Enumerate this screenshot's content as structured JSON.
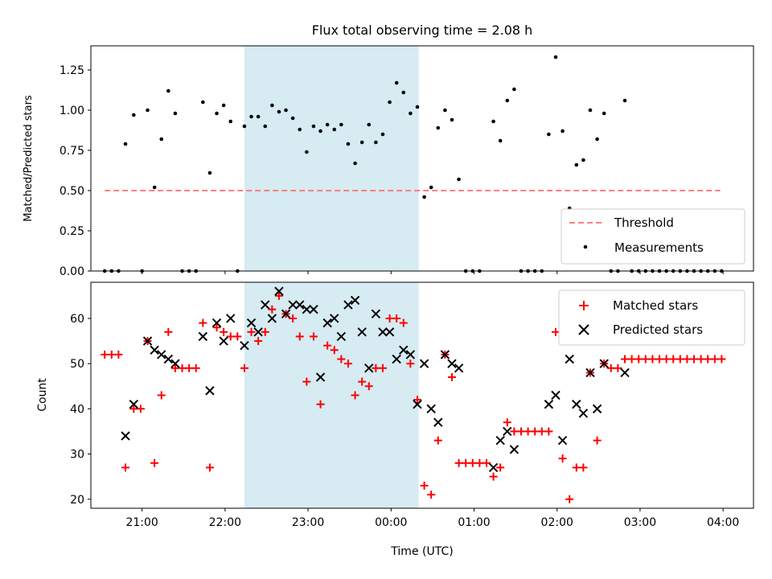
{
  "chart_data": [
    {
      "type": "scatter",
      "title": "Flux total observing time = 2.08 h",
      "xlabel": "",
      "ylabel": "Matched/Predicted stars",
      "x_unit": "time (UTC, hours after 00:00 of first night; >24 = next day)",
      "xlim": [
        "20:23",
        "04:22"
      ],
      "ylim": [
        0,
        1.4
      ],
      "yticks": [
        "0.00",
        "0.25",
        "0.50",
        "0.75",
        "1.00",
        "1.25"
      ],
      "shaded_interval": [
        "22:14",
        "00:20"
      ],
      "shade_color": "#add8e6",
      "threshold": {
        "name": "Threshold",
        "y": 0.5,
        "x_range": [
          "20:33",
          "03:58"
        ],
        "color": "#ff7f7f"
      },
      "series": [
        {
          "name": "Measurements",
          "color": "#000000",
          "marker": "dot",
          "points": [
            [
              "20:33",
              0
            ],
            [
              "20:38",
              0
            ],
            [
              "20:43",
              0
            ],
            [
              "20:48",
              0.79
            ],
            [
              "20:54",
              0.97
            ],
            [
              "21:00",
              0
            ],
            [
              "21:04",
              1.0
            ],
            [
              "21:09",
              0.52
            ],
            [
              "21:14",
              0.82
            ],
            [
              "21:19",
              1.12
            ],
            [
              "21:24",
              0.98
            ],
            [
              "21:29",
              0
            ],
            [
              "21:34",
              0
            ],
            [
              "21:39",
              0
            ],
            [
              "21:44",
              1.05
            ],
            [
              "21:49",
              0.61
            ],
            [
              "21:54",
              0.98
            ],
            [
              "21:59",
              1.03
            ],
            [
              "22:04",
              0.93
            ],
            [
              "22:09",
              0
            ],
            [
              "22:14",
              0.9
            ],
            [
              "22:19",
              0.96
            ],
            [
              "22:24",
              0.96
            ],
            [
              "22:29",
              0.9
            ],
            [
              "22:34",
              1.03
            ],
            [
              "22:39",
              0.99
            ],
            [
              "22:44",
              1.0
            ],
            [
              "22:49",
              0.95
            ],
            [
              "22:54",
              0.88
            ],
            [
              "22:59",
              0.74
            ],
            [
              "23:04",
              0.9
            ],
            [
              "23:09",
              0.87
            ],
            [
              "23:14",
              0.91
            ],
            [
              "23:19",
              0.88
            ],
            [
              "23:24",
              0.91
            ],
            [
              "23:29",
              0.79
            ],
            [
              "23:34",
              0.67
            ],
            [
              "23:39",
              0.8
            ],
            [
              "23:44",
              0.91
            ],
            [
              "23:49",
              0.8
            ],
            [
              "23:54",
              0.85
            ],
            [
              "23:59",
              1.05
            ],
            [
              "24:04",
              1.17
            ],
            [
              "24:09",
              1.11
            ],
            [
              "24:14",
              0.98
            ],
            [
              "24:19",
              1.02
            ],
            [
              "24:24",
              0.46
            ],
            [
              "24:29",
              0.52
            ],
            [
              "24:34",
              0.89
            ],
            [
              "24:39",
              1.0
            ],
            [
              "24:44",
              0.94
            ],
            [
              "24:49",
              0.57
            ],
            [
              "24:54",
              0
            ],
            [
              "24:59",
              0
            ],
            [
              "25:04",
              0
            ],
            [
              "25:14",
              0.93
            ],
            [
              "25:19",
              0.81
            ],
            [
              "25:24",
              1.06
            ],
            [
              "25:29",
              1.13
            ],
            [
              "25:34",
              0
            ],
            [
              "25:39",
              0
            ],
            [
              "25:44",
              0
            ],
            [
              "25:49",
              0
            ],
            [
              "25:54",
              0.85
            ],
            [
              "25:59",
              1.33
            ],
            [
              "26:04",
              0.87
            ],
            [
              "26:09",
              0.39
            ],
            [
              "26:14",
              0.66
            ],
            [
              "26:19",
              0.69
            ],
            [
              "26:24",
              1.0
            ],
            [
              "26:29",
              0.82
            ],
            [
              "26:34",
              0.98
            ],
            [
              "26:39",
              0
            ],
            [
              "26:44",
              0
            ],
            [
              "26:49",
              1.06
            ],
            [
              "26:54",
              0
            ],
            [
              "26:59",
              0
            ],
            [
              "27:04",
              0
            ],
            [
              "27:09",
              0
            ],
            [
              "27:14",
              0
            ],
            [
              "27:19",
              0
            ],
            [
              "27:24",
              0
            ],
            [
              "27:29",
              0
            ],
            [
              "27:34",
              0
            ],
            [
              "27:39",
              0
            ],
            [
              "27:44",
              0
            ],
            [
              "27:49",
              0
            ],
            [
              "27:54",
              0
            ],
            [
              "27:59",
              0
            ]
          ]
        }
      ],
      "legend": {
        "position": "bottom-right",
        "entries": [
          "Threshold",
          "Measurements"
        ]
      }
    },
    {
      "type": "scatter",
      "title": "",
      "xlabel": "Time (UTC)",
      "ylabel": "Count",
      "xlim": [
        "20:23",
        "04:22"
      ],
      "ylim": [
        18,
        68
      ],
      "yticks": [
        "20",
        "30",
        "40",
        "50",
        "60"
      ],
      "xticks": [
        "21:00",
        "22:00",
        "23:00",
        "00:00",
        "01:00",
        "02:00",
        "03:00",
        "04:00"
      ],
      "shaded_interval": [
        "22:14",
        "00:20"
      ],
      "shade_color": "#add8e6",
      "series": [
        {
          "name": "Matched stars",
          "color": "#ff0000",
          "marker": "plus",
          "points": [
            [
              "20:33",
              52
            ],
            [
              "20:38",
              52
            ],
            [
              "20:43",
              52
            ],
            [
              "20:48",
              27
            ],
            [
              "20:54",
              40
            ],
            [
              "20:59",
              40
            ],
            [
              "21:04",
              55
            ],
            [
              "21:09",
              28
            ],
            [
              "21:14",
              43
            ],
            [
              "21:19",
              57
            ],
            [
              "21:24",
              49
            ],
            [
              "21:29",
              49
            ],
            [
              "21:34",
              49
            ],
            [
              "21:39",
              49
            ],
            [
              "21:44",
              59
            ],
            [
              "21:49",
              27
            ],
            [
              "21:54",
              58
            ],
            [
              "21:59",
              57
            ],
            [
              "22:04",
              56
            ],
            [
              "22:09",
              56
            ],
            [
              "22:14",
              49
            ],
            [
              "22:19",
              57
            ],
            [
              "22:24",
              55
            ],
            [
              "22:29",
              57
            ],
            [
              "22:34",
              62
            ],
            [
              "22:39",
              65
            ],
            [
              "22:44",
              61
            ],
            [
              "22:49",
              60
            ],
            [
              "22:54",
              56
            ],
            [
              "22:59",
              46
            ],
            [
              "23:04",
              56
            ],
            [
              "23:09",
              41
            ],
            [
              "23:14",
              54
            ],
            [
              "23:19",
              53
            ],
            [
              "23:24",
              51
            ],
            [
              "23:29",
              50
            ],
            [
              "23:34",
              43
            ],
            [
              "23:39",
              46
            ],
            [
              "23:44",
              45
            ],
            [
              "23:49",
              49
            ],
            [
              "23:54",
              49
            ],
            [
              "23:59",
              60
            ],
            [
              "24:04",
              60
            ],
            [
              "24:09",
              59
            ],
            [
              "24:14",
              50
            ],
            [
              "24:19",
              42
            ],
            [
              "24:24",
              23
            ],
            [
              "24:29",
              21
            ],
            [
              "24:34",
              33
            ],
            [
              "24:39",
              52
            ],
            [
              "24:44",
              47
            ],
            [
              "24:49",
              28
            ],
            [
              "24:54",
              28
            ],
            [
              "24:59",
              28
            ],
            [
              "25:04",
              28
            ],
            [
              "25:09",
              28
            ],
            [
              "25:14",
              25
            ],
            [
              "25:19",
              27
            ],
            [
              "25:24",
              37
            ],
            [
              "25:29",
              35
            ],
            [
              "25:34",
              35
            ],
            [
              "25:39",
              35
            ],
            [
              "25:44",
              35
            ],
            [
              "25:49",
              35
            ],
            [
              "25:54",
              35
            ],
            [
              "25:59",
              57
            ],
            [
              "26:04",
              29
            ],
            [
              "26:09",
              20
            ],
            [
              "26:14",
              27
            ],
            [
              "26:19",
              27
            ],
            [
              "26:24",
              48
            ],
            [
              "26:29",
              33
            ],
            [
              "26:34",
              50
            ],
            [
              "26:39",
              49
            ],
            [
              "26:44",
              49
            ],
            [
              "26:49",
              51
            ],
            [
              "26:54",
              51
            ],
            [
              "26:59",
              51
            ],
            [
              "27:04",
              51
            ],
            [
              "27:09",
              51
            ],
            [
              "27:14",
              51
            ],
            [
              "27:19",
              51
            ],
            [
              "27:24",
              51
            ],
            [
              "27:29",
              51
            ],
            [
              "27:34",
              51
            ],
            [
              "27:39",
              51
            ],
            [
              "27:44",
              51
            ],
            [
              "27:49",
              51
            ],
            [
              "27:54",
              51
            ],
            [
              "27:59",
              51
            ]
          ]
        },
        {
          "name": "Predicted stars",
          "color": "#000000",
          "marker": "x",
          "points": [
            [
              "20:48",
              34
            ],
            [
              "20:54",
              41
            ],
            [
              "21:04",
              55
            ],
            [
              "21:09",
              53
            ],
            [
              "21:14",
              52
            ],
            [
              "21:19",
              51
            ],
            [
              "21:24",
              50
            ],
            [
              "21:44",
              56
            ],
            [
              "21:49",
              44
            ],
            [
              "21:54",
              59
            ],
            [
              "21:59",
              55
            ],
            [
              "22:04",
              60
            ],
            [
              "22:14",
              54
            ],
            [
              "22:19",
              59
            ],
            [
              "22:24",
              57
            ],
            [
              "22:29",
              63
            ],
            [
              "22:34",
              60
            ],
            [
              "22:39",
              66
            ],
            [
              "22:44",
              61
            ],
            [
              "22:49",
              63
            ],
            [
              "22:54",
              63
            ],
            [
              "22:59",
              62
            ],
            [
              "23:04",
              62
            ],
            [
              "23:09",
              47
            ],
            [
              "23:14",
              59
            ],
            [
              "23:19",
              60
            ],
            [
              "23:24",
              56
            ],
            [
              "23:29",
              63
            ],
            [
              "23:34",
              64
            ],
            [
              "23:39",
              57
            ],
            [
              "23:44",
              49
            ],
            [
              "23:49",
              61
            ],
            [
              "23:54",
              57
            ],
            [
              "23:59",
              57
            ],
            [
              "24:04",
              51
            ],
            [
              "24:09",
              53
            ],
            [
              "24:14",
              52
            ],
            [
              "24:19",
              41
            ],
            [
              "24:24",
              50
            ],
            [
              "24:29",
              40
            ],
            [
              "24:34",
              37
            ],
            [
              "24:39",
              52
            ],
            [
              "24:44",
              50
            ],
            [
              "24:49",
              49
            ],
            [
              "25:14",
              27
            ],
            [
              "25:19",
              33
            ],
            [
              "25:24",
              35
            ],
            [
              "25:29",
              31
            ],
            [
              "25:54",
              41
            ],
            [
              "25:59",
              43
            ],
            [
              "26:04",
              33
            ],
            [
              "26:09",
              51
            ],
            [
              "26:14",
              41
            ],
            [
              "26:19",
              39
            ],
            [
              "26:24",
              48
            ],
            [
              "26:29",
              40
            ],
            [
              "26:34",
              50
            ],
            [
              "26:49",
              48
            ]
          ]
        }
      ],
      "legend": {
        "position": "top-right",
        "entries": [
          "Matched stars",
          "Predicted stars"
        ]
      }
    }
  ]
}
